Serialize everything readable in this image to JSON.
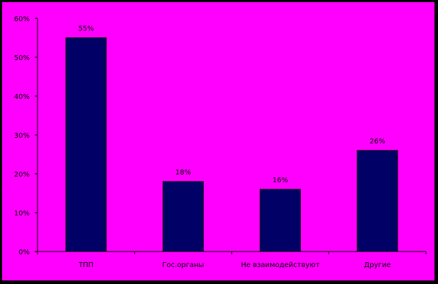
{
  "chart_data": {
    "type": "bar",
    "categories": [
      "ТПП",
      "Гос.органы",
      "Не взаимодействуют",
      "Другие"
    ],
    "values": [
      55,
      18,
      16,
      26
    ],
    "data_labels": [
      "55%",
      "18%",
      "16%",
      "26%"
    ],
    "ylim": [
      0,
      60
    ],
    "yticks": [
      0,
      10,
      20,
      30,
      40,
      50,
      60
    ],
    "ytick_labels": [
      "0%",
      "10%",
      "20%",
      "30%",
      "40%",
      "50%",
      "60%"
    ],
    "title": "",
    "xlabel": "",
    "ylabel": "",
    "grid": false,
    "legend": "none",
    "colors": {
      "background": "#ff00ff",
      "bar": "#000066",
      "frame": "#000000",
      "axis": "#000000"
    }
  }
}
